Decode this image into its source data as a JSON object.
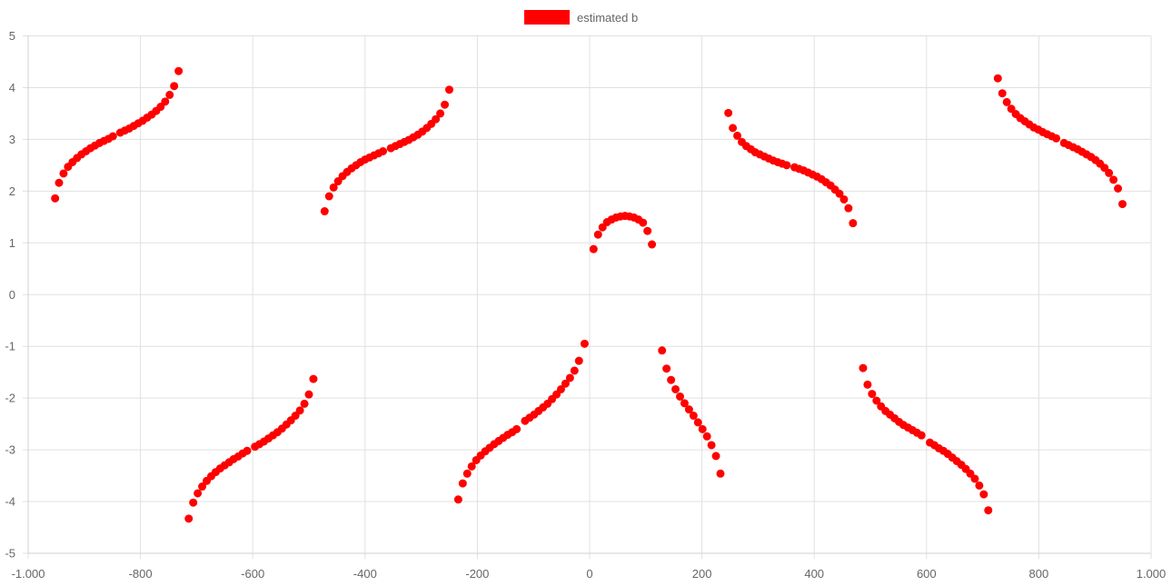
{
  "chart_data": {
    "type": "scatter",
    "title": "",
    "xlabel": "",
    "ylabel": "",
    "xlim": [
      -1000,
      1000
    ],
    "ylim": [
      -5,
      5
    ],
    "x_ticks": [
      -1000,
      -800,
      -600,
      -400,
      -200,
      0,
      200,
      400,
      600,
      800,
      1000
    ],
    "x_tick_labels": [
      "-1.000",
      "-800",
      "-600",
      "-400",
      "-200",
      "0",
      "200",
      "400",
      "600",
      "800",
      "1.000"
    ],
    "y_ticks": [
      5,
      4,
      3,
      2,
      1,
      0,
      -1,
      -2,
      -3,
      -4,
      -5
    ],
    "y_tick_labels": [
      "5",
      "4",
      "3",
      "2",
      "1",
      "0",
      "-1",
      "-2",
      "-3",
      "-4",
      "-5"
    ],
    "grid": true,
    "legend_position": "top-center",
    "series": [
      {
        "name": "estimated b",
        "color": "#ff0000",
        "points": [
          [
            -952,
            1.86
          ],
          [
            -945,
            2.16
          ],
          [
            -937,
            2.34
          ],
          [
            -929,
            2.47
          ],
          [
            -921,
            2.56
          ],
          [
            -913,
            2.64
          ],
          [
            -905,
            2.71
          ],
          [
            -897,
            2.77
          ],
          [
            -889,
            2.83
          ],
          [
            -881,
            2.88
          ],
          [
            -873,
            2.93
          ],
          [
            -865,
            2.97
          ],
          [
            -857,
            3.01
          ],
          [
            -849,
            3.06
          ],
          [
            -836,
            3.13
          ],
          [
            -828,
            3.17
          ],
          [
            -820,
            3.21
          ],
          [
            -812,
            3.26
          ],
          [
            -804,
            3.31
          ],
          [
            -796,
            3.36
          ],
          [
            -788,
            3.42
          ],
          [
            -780,
            3.48
          ],
          [
            -772,
            3.55
          ],
          [
            -764,
            3.63
          ],
          [
            -756,
            3.73
          ],
          [
            -748,
            3.86
          ],
          [
            -740,
            4.03
          ],
          [
            -732,
            4.32
          ],
          [
            -472,
            1.61
          ],
          [
            -464,
            1.9
          ],
          [
            -456,
            2.07
          ],
          [
            -448,
            2.19
          ],
          [
            -440,
            2.29
          ],
          [
            -432,
            2.37
          ],
          [
            -424,
            2.44
          ],
          [
            -416,
            2.5
          ],
          [
            -408,
            2.56
          ],
          [
            -400,
            2.61
          ],
          [
            -392,
            2.65
          ],
          [
            -384,
            2.69
          ],
          [
            -376,
            2.73
          ],
          [
            -368,
            2.77
          ],
          [
            -354,
            2.83
          ],
          [
            -346,
            2.87
          ],
          [
            -338,
            2.91
          ],
          [
            -330,
            2.95
          ],
          [
            -322,
            2.99
          ],
          [
            -314,
            3.04
          ],
          [
            -306,
            3.09
          ],
          [
            -298,
            3.15
          ],
          [
            -290,
            3.22
          ],
          [
            -282,
            3.3
          ],
          [
            -274,
            3.39
          ],
          [
            -266,
            3.5
          ],
          [
            -258,
            3.67
          ],
          [
            -250,
            3.96
          ],
          [
            -714,
            -4.33
          ],
          [
            -706,
            -4.02
          ],
          [
            -698,
            -3.84
          ],
          [
            -690,
            -3.71
          ],
          [
            -682,
            -3.6
          ],
          [
            -674,
            -3.51
          ],
          [
            -666,
            -3.43
          ],
          [
            -658,
            -3.36
          ],
          [
            -650,
            -3.3
          ],
          [
            -642,
            -3.24
          ],
          [
            -634,
            -3.18
          ],
          [
            -626,
            -3.13
          ],
          [
            -618,
            -3.07
          ],
          [
            -610,
            -3.02
          ],
          [
            -596,
            -2.94
          ],
          [
            -588,
            -2.89
          ],
          [
            -580,
            -2.84
          ],
          [
            -572,
            -2.78
          ],
          [
            -564,
            -2.72
          ],
          [
            -556,
            -2.66
          ],
          [
            -548,
            -2.59
          ],
          [
            -540,
            -2.51
          ],
          [
            -532,
            -2.43
          ],
          [
            -524,
            -2.34
          ],
          [
            -516,
            -2.24
          ],
          [
            -508,
            -2.11
          ],
          [
            -500,
            -1.93
          ],
          [
            -492,
            -1.63
          ],
          [
            -234,
            -3.96
          ],
          [
            -226,
            -3.65
          ],
          [
            -218,
            -3.46
          ],
          [
            -210,
            -3.32
          ],
          [
            -202,
            -3.2
          ],
          [
            -194,
            -3.11
          ],
          [
            -186,
            -3.03
          ],
          [
            -178,
            -2.96
          ],
          [
            -170,
            -2.89
          ],
          [
            -162,
            -2.83
          ],
          [
            -154,
            -2.77
          ],
          [
            -146,
            -2.71
          ],
          [
            -138,
            -2.66
          ],
          [
            -130,
            -2.6
          ],
          [
            -115,
            -2.44
          ],
          [
            -107,
            -2.38
          ],
          [
            -99,
            -2.32
          ],
          [
            -91,
            -2.25
          ],
          [
            -83,
            -2.18
          ],
          [
            -75,
            -2.11
          ],
          [
            -67,
            -2.02
          ],
          [
            -59,
            -1.93
          ],
          [
            -51,
            -1.83
          ],
          [
            -43,
            -1.72
          ],
          [
            -35,
            -1.61
          ],
          [
            -27,
            -1.47
          ],
          [
            -19,
            -1.28
          ],
          [
            -9,
            -0.95
          ],
          [
            7,
            0.88
          ],
          [
            15,
            1.16
          ],
          [
            23,
            1.3
          ],
          [
            31,
            1.4
          ],
          [
            39,
            1.45
          ],
          [
            47,
            1.49
          ],
          [
            55,
            1.51
          ],
          [
            63,
            1.52
          ],
          [
            71,
            1.51
          ],
          [
            79,
            1.49
          ],
          [
            87,
            1.45
          ],
          [
            95,
            1.39
          ],
          [
            103,
            1.23
          ],
          [
            111,
            0.97
          ],
          [
            129,
            -1.08
          ],
          [
            137,
            -1.43
          ],
          [
            145,
            -1.65
          ],
          [
            153,
            -1.83
          ],
          [
            161,
            -1.97
          ],
          [
            169,
            -2.1
          ],
          [
            177,
            -2.22
          ],
          [
            185,
            -2.34
          ],
          [
            193,
            -2.47
          ],
          [
            201,
            -2.6
          ],
          [
            209,
            -2.74
          ],
          [
            217,
            -2.91
          ],
          [
            225,
            -3.12
          ],
          [
            233,
            -3.46
          ],
          [
            247,
            3.51
          ],
          [
            255,
            3.22
          ],
          [
            263,
            3.07
          ],
          [
            271,
            2.95
          ],
          [
            279,
            2.87
          ],
          [
            287,
            2.81
          ],
          [
            295,
            2.75
          ],
          [
            303,
            2.71
          ],
          [
            311,
            2.67
          ],
          [
            319,
            2.63
          ],
          [
            327,
            2.59
          ],
          [
            335,
            2.56
          ],
          [
            343,
            2.53
          ],
          [
            351,
            2.5
          ],
          [
            365,
            2.46
          ],
          [
            373,
            2.43
          ],
          [
            381,
            2.4
          ],
          [
            389,
            2.36
          ],
          [
            397,
            2.32
          ],
          [
            405,
            2.28
          ],
          [
            413,
            2.23
          ],
          [
            421,
            2.17
          ],
          [
            429,
            2.11
          ],
          [
            437,
            2.03
          ],
          [
            445,
            1.95
          ],
          [
            453,
            1.84
          ],
          [
            461,
            1.67
          ],
          [
            469,
            1.38
          ],
          [
            487,
            -1.42
          ],
          [
            495,
            -1.74
          ],
          [
            503,
            -1.92
          ],
          [
            511,
            -2.05
          ],
          [
            519,
            -2.16
          ],
          [
            527,
            -2.25
          ],
          [
            535,
            -2.32
          ],
          [
            543,
            -2.39
          ],
          [
            551,
            -2.46
          ],
          [
            559,
            -2.52
          ],
          [
            567,
            -2.57
          ],
          [
            575,
            -2.62
          ],
          [
            583,
            -2.67
          ],
          [
            591,
            -2.72
          ],
          [
            606,
            -2.86
          ],
          [
            614,
            -2.91
          ],
          [
            622,
            -2.97
          ],
          [
            630,
            -3.02
          ],
          [
            638,
            -3.08
          ],
          [
            646,
            -3.15
          ],
          [
            654,
            -3.22
          ],
          [
            662,
            -3.29
          ],
          [
            670,
            -3.37
          ],
          [
            678,
            -3.46
          ],
          [
            686,
            -3.56
          ],
          [
            694,
            -3.69
          ],
          [
            702,
            -3.86
          ],
          [
            710,
            -4.17
          ],
          [
            727,
            4.18
          ],
          [
            735,
            3.89
          ],
          [
            743,
            3.72
          ],
          [
            751,
            3.59
          ],
          [
            759,
            3.49
          ],
          [
            767,
            3.41
          ],
          [
            775,
            3.35
          ],
          [
            783,
            3.29
          ],
          [
            791,
            3.23
          ],
          [
            799,
            3.19
          ],
          [
            807,
            3.14
          ],
          [
            815,
            3.1
          ],
          [
            823,
            3.06
          ],
          [
            831,
            3.02
          ],
          [
            845,
            2.93
          ],
          [
            853,
            2.89
          ],
          [
            861,
            2.85
          ],
          [
            869,
            2.81
          ],
          [
            877,
            2.76
          ],
          [
            885,
            2.71
          ],
          [
            893,
            2.66
          ],
          [
            901,
            2.6
          ],
          [
            909,
            2.53
          ],
          [
            917,
            2.45
          ],
          [
            925,
            2.35
          ],
          [
            933,
            2.22
          ],
          [
            941,
            2.05
          ],
          [
            949,
            1.75
          ]
        ]
      }
    ]
  }
}
